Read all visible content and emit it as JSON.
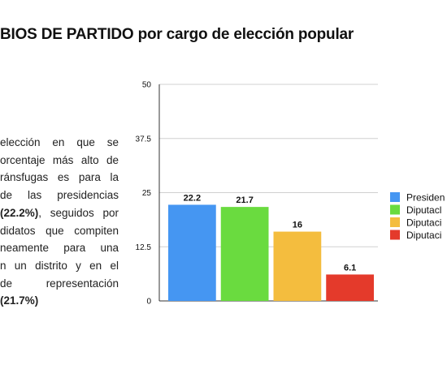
{
  "slide": {
    "title": "BIOS DE PARTIDO por cargo de elección popular",
    "body_lines": [
      {
        "parts": [
          {
            "text": "elección en que se",
            "bold": false
          }
        ]
      },
      {
        "parts": [
          {
            "text": "orcentaje más alto de",
            "bold": false
          }
        ]
      },
      {
        "parts": [
          {
            "text": "ránsfugas es para la",
            "bold": false
          }
        ]
      },
      {
        "parts": [
          {
            "text": "de las presidencias",
            "bold": false
          }
        ]
      },
      {
        "parts": [
          {
            "text": "(22.2%)",
            "bold": true
          },
          {
            "text": ", seguidos por",
            "bold": false
          }
        ]
      },
      {
        "parts": [
          {
            "text": "didatos que compiten",
            "bold": false
          }
        ]
      },
      {
        "parts": [
          {
            "text": "neamente para una",
            "bold": false
          }
        ]
      },
      {
        "parts": [
          {
            "text": "n un distrito y en el",
            "bold": false
          }
        ]
      },
      {
        "parts": [
          {
            "text": "de representación",
            "bold": false
          }
        ]
      },
      {
        "parts": [
          {
            "text": "(21.7%)",
            "bold": true
          }
        ]
      }
    ]
  },
  "chart_data": {
    "type": "bar",
    "title": "",
    "xlabel": "",
    "ylabel": "",
    "ylim": [
      0,
      50
    ],
    "yticks": [
      "0",
      "12.5",
      "25",
      "37.5",
      "50"
    ],
    "grid": true,
    "legend_position": "right",
    "series": [
      {
        "name": "Presiden",
        "value": 22.2,
        "label": "22.2",
        "color": "#4596f2"
      },
      {
        "name": "Diputacl",
        "value": 21.7,
        "label": "21.7",
        "color": "#6adb3f"
      },
      {
        "name": "Diputaci",
        "value": 16,
        "label": "16",
        "color": "#f4bd3e"
      },
      {
        "name": "Diputaci",
        "value": 6.1,
        "label": "6.1",
        "color": "#e43a2b"
      }
    ]
  },
  "colors": {
    "grid": "#d0d0d0",
    "axis": "#333333"
  }
}
